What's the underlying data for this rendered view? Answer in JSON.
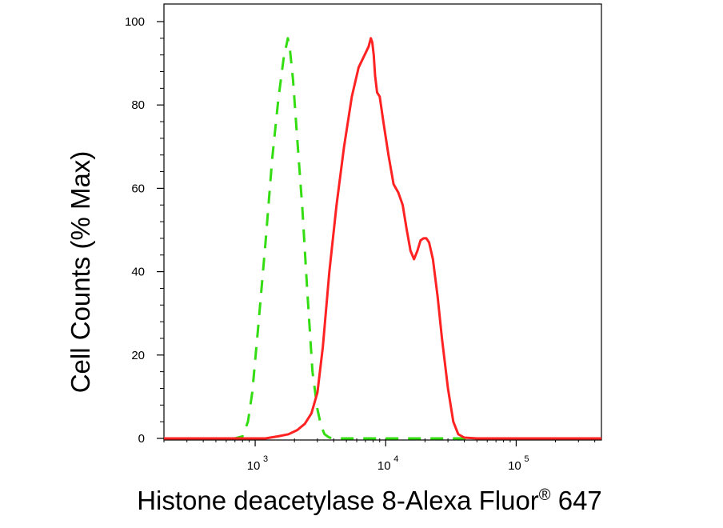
{
  "chart_data": {
    "type": "line",
    "title": "",
    "xlabel_parts": {
      "main": "Histone deacetylase 8-Alexa Fluor",
      "superscript": "®",
      "suffix": " 647"
    },
    "ylabel": "Cell Counts (% Max)",
    "x_scale": "log",
    "xlim": [
      200,
      450000
    ],
    "ylim": [
      0,
      100
    ],
    "x_major_ticks": [
      {
        "value": 1000,
        "base": "10",
        "exp": "3"
      },
      {
        "value": 10000,
        "base": "10",
        "exp": "4"
      },
      {
        "value": 100000,
        "base": "10",
        "exp": "5"
      }
    ],
    "y_ticks": [
      "0",
      "20",
      "40",
      "60",
      "80",
      "100"
    ],
    "y_tick_values": [
      0,
      20,
      40,
      60,
      80,
      100
    ],
    "grid": false,
    "legend": "none",
    "series": [
      {
        "color": "#33dd11",
        "dash": "dashed",
        "x": [
          200,
          700,
          800,
          880,
          950,
          1050,
          1200,
          1350,
          1500,
          1650,
          1780,
          1850,
          1950,
          2100,
          2300,
          2500,
          2750,
          3000,
          3200,
          3400,
          3700,
          4200,
          6000,
          20000,
          100000,
          450000
        ],
        "y": [
          0,
          0,
          0.5,
          4,
          11,
          26,
          47,
          67,
          81,
          91,
          96,
          93,
          86,
          72,
          55,
          36,
          16,
          7,
          3,
          1,
          0.2,
          0,
          0,
          0,
          0,
          0
        ]
      },
      {
        "color": "#ff2222",
        "dash": "solid",
        "x": [
          200,
          1200,
          1500,
          1800,
          2100,
          2400,
          2700,
          3000,
          3300,
          3700,
          4200,
          4800,
          5500,
          6200,
          6900,
          7400,
          7700,
          7900,
          8100,
          8300,
          8600,
          9000,
          9600,
          10500,
          11500,
          12500,
          13500,
          14500,
          15500,
          16500,
          17500,
          18500,
          19500,
          20500,
          21500,
          23000,
          25000,
          27000,
          30000,
          33000,
          36000,
          40000,
          50000,
          100000,
          450000
        ],
        "y": [
          0,
          0,
          0.5,
          1,
          2,
          3.5,
          6,
          11,
          22,
          40,
          56,
          70,
          82,
          89,
          92,
          94,
          96,
          95,
          92,
          87,
          83,
          82,
          76,
          68,
          61,
          59,
          56,
          50,
          45,
          43,
          45,
          47.5,
          48,
          48,
          47,
          43,
          34,
          24,
          12,
          4,
          1,
          0.2,
          0,
          0,
          0
        ]
      }
    ]
  }
}
